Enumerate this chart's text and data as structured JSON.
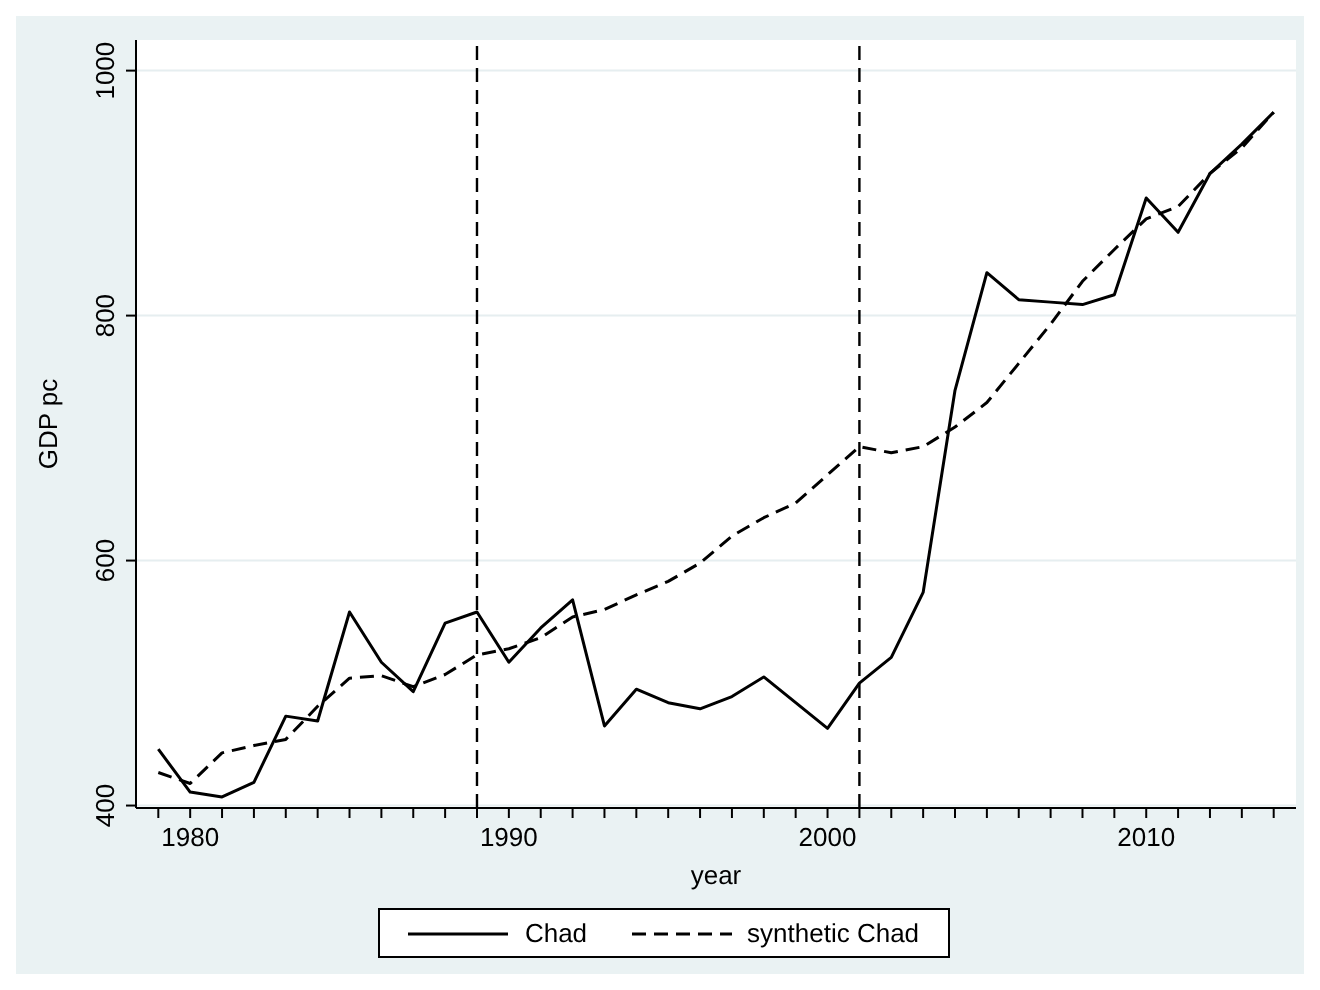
{
  "chart_data": {
    "type": "line",
    "xlabel": "year",
    "ylabel": "GDP pc",
    "x": [
      1979,
      1980,
      1981,
      1982,
      1983,
      1984,
      1985,
      1986,
      1987,
      1988,
      1989,
      1990,
      1991,
      1992,
      1993,
      1994,
      1995,
      1996,
      1997,
      1998,
      1999,
      2000,
      2001,
      2002,
      2003,
      2004,
      2005,
      2006,
      2007,
      2008,
      2009,
      2010,
      2011,
      2012,
      2013,
      2014
    ],
    "series": [
      {
        "name": "Chad",
        "color": "#000000",
        "line_style": "solid",
        "values": [
          446,
          411,
          407,
          419,
          473,
          469,
          558,
          517,
          493,
          549,
          558,
          517,
          545,
          568,
          465,
          495,
          484,
          479,
          489,
          505,
          484,
          463,
          500,
          521,
          574,
          739,
          835,
          813,
          811,
          809,
          817,
          896,
          868,
          916,
          940,
          966
        ]
      },
      {
        "name": "synthetic Chad",
        "color": "#000000",
        "line_style": "dashed",
        "values": [
          427,
          418,
          443,
          449,
          454,
          481,
          504,
          506,
          497,
          507,
          523,
          528,
          537,
          554,
          560,
          572,
          583,
          598,
          620,
          635,
          647,
          670,
          693,
          688,
          693,
          709,
          729,
          761,
          793,
          828,
          854,
          879,
          889,
          916,
          937,
          966
        ]
      }
    ],
    "xlim": [
      1978.3,
      2014.7
    ],
    "ylim": [
      398,
      1025
    ],
    "yticks": [
      400,
      600,
      800,
      1000
    ],
    "xticks": [
      {
        "value": 1979,
        "label": null
      },
      1980,
      {
        "value": 1981,
        "label": null
      },
      {
        "value": 1982,
        "label": null
      },
      {
        "value": 1983,
        "label": null
      },
      {
        "value": 1984,
        "label": null
      },
      {
        "value": 1985,
        "label": null
      },
      {
        "value": 1986,
        "label": null
      },
      {
        "value": 1987,
        "label": null
      },
      {
        "value": 1988,
        "label": null
      },
      {
        "value": 1989,
        "label": null
      },
      1990,
      {
        "value": 1991,
        "label": null
      },
      {
        "value": 1992,
        "label": null
      },
      {
        "value": 1993,
        "label": null
      },
      {
        "value": 1994,
        "label": null
      },
      {
        "value": 1995,
        "label": null
      },
      {
        "value": 1996,
        "label": null
      },
      {
        "value": 1997,
        "label": null
      },
      {
        "value": 1998,
        "label": null
      },
      {
        "value": 1999,
        "label": null
      },
      2000,
      {
        "value": 2001,
        "label": null
      },
      {
        "value": 2002,
        "label": null
      },
      {
        "value": 2003,
        "label": null
      },
      {
        "value": 2004,
        "label": null
      },
      {
        "value": 2005,
        "label": null
      },
      {
        "value": 2006,
        "label": null
      },
      {
        "value": 2007,
        "label": null
      },
      {
        "value": 2008,
        "label": null
      },
      {
        "value": 2009,
        "label": null
      },
      2010,
      {
        "value": 2011,
        "label": null
      },
      {
        "value": 2012,
        "label": null
      },
      {
        "value": 2013,
        "label": null
      },
      {
        "value": 2014,
        "label": null
      }
    ],
    "ref_lines": [
      {
        "axis": "x",
        "value": 1989,
        "line_style": "dashed",
        "color": "#000000"
      },
      {
        "axis": "x",
        "value": 2001,
        "line_style": "dashed",
        "color": "#000000"
      }
    ],
    "grid": "y",
    "legend": "bottom",
    "marker": "none"
  }
}
